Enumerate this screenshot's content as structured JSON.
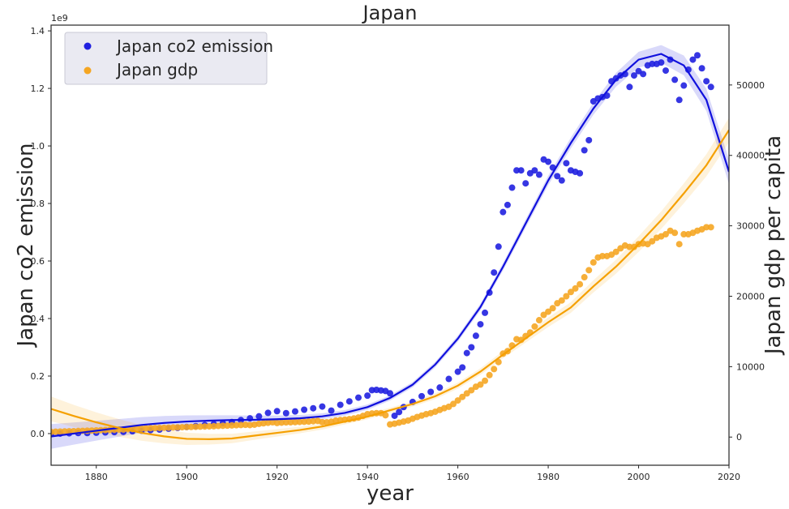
{
  "chart_data": {
    "type": "scatter",
    "title": "Japan",
    "xlabel": "year",
    "ylabel_left": "Japan co2 emission",
    "ylabel_right": "Japan gdp per capita",
    "left_axis_offset_label": "1e9",
    "xlim": [
      1870,
      2020
    ],
    "ylim_left": [
      -0.11,
      1.42
    ],
    "ylim_right": [
      -4000,
      58500
    ],
    "x_ticks": [
      1880,
      1900,
      1920,
      1940,
      1960,
      1980,
      2000,
      2020
    ],
    "y_ticks_left": [
      "0.0",
      "0.2",
      "0.4",
      "0.6",
      "0.8",
      "1.0",
      "1.2",
      "1.4"
    ],
    "y_ticks_left_values": [
      0,
      0.2,
      0.4,
      0.6,
      0.8,
      1.0,
      1.2,
      1.4
    ],
    "y_ticks_right": [
      0,
      10000,
      20000,
      30000,
      40000,
      50000
    ],
    "legend": {
      "position": "top-left",
      "entries": [
        "Japan co2 emission",
        "Japan gdp"
      ]
    },
    "colors": {
      "co2": "#2020e0",
      "co2_line": "#1010dd",
      "gdp": "#f5a623",
      "gdp_line": "#f5a000"
    },
    "series": [
      {
        "name": "Japan co2 emission",
        "axis": "left",
        "unit_scale": "1e9",
        "x": [
          1870,
          1872,
          1874,
          1876,
          1878,
          1880,
          1882,
          1884,
          1886,
          1888,
          1890,
          1892,
          1894,
          1896,
          1898,
          1900,
          1902,
          1904,
          1906,
          1908,
          1910,
          1912,
          1914,
          1916,
          1918,
          1920,
          1922,
          1924,
          1926,
          1928,
          1930,
          1932,
          1934,
          1936,
          1938,
          1940,
          1941,
          1942,
          1943,
          1944,
          1945,
          1946,
          1947,
          1948,
          1950,
          1952,
          1954,
          1956,
          1958,
          1960,
          1961,
          1962,
          1963,
          1964,
          1965,
          1966,
          1967,
          1968,
          1969,
          1970,
          1971,
          1972,
          1973,
          1974,
          1975,
          1976,
          1977,
          1978,
          1979,
          1980,
          1981,
          1982,
          1983,
          1984,
          1985,
          1986,
          1987,
          1988,
          1989,
          1990,
          1991,
          1992,
          1993,
          1994,
          1995,
          1996,
          1997,
          1998,
          1999,
          2000,
          2001,
          2002,
          2003,
          2004,
          2005,
          2006,
          2007,
          2008,
          2009,
          2010,
          2011,
          2012,
          2013,
          2014,
          2015,
          2016
        ],
        "y": [
          0.0,
          0.0,
          0.001,
          0.002,
          0.002,
          0.003,
          0.004,
          0.005,
          0.006,
          0.008,
          0.01,
          0.012,
          0.014,
          0.017,
          0.02,
          0.023,
          0.026,
          0.03,
          0.033,
          0.036,
          0.04,
          0.047,
          0.053,
          0.06,
          0.072,
          0.078,
          0.071,
          0.077,
          0.083,
          0.088,
          0.094,
          0.08,
          0.1,
          0.112,
          0.125,
          0.132,
          0.151,
          0.152,
          0.15,
          0.148,
          0.14,
          0.062,
          0.075,
          0.092,
          0.11,
          0.13,
          0.145,
          0.16,
          0.19,
          0.215,
          0.23,
          0.28,
          0.3,
          0.34,
          0.38,
          0.42,
          0.49,
          0.56,
          0.65,
          0.77,
          0.795,
          0.855,
          0.915,
          0.915,
          0.87,
          0.905,
          0.915,
          0.9,
          0.953,
          0.945,
          0.925,
          0.895,
          0.88,
          0.94,
          0.915,
          0.91,
          0.905,
          0.985,
          1.02,
          1.155,
          1.165,
          1.17,
          1.175,
          1.225,
          1.235,
          1.245,
          1.25,
          1.205,
          1.245,
          1.26,
          1.25,
          1.28,
          1.285,
          1.285,
          1.29,
          1.262,
          1.3,
          1.23,
          1.16,
          1.21,
          1.265,
          1.3,
          1.315,
          1.27,
          1.225,
          1.205
        ]
      },
      {
        "name": "Japan gdp",
        "axis": "right",
        "x": [
          1870,
          1871,
          1872,
          1873,
          1874,
          1875,
          1876,
          1877,
          1878,
          1879,
          1880,
          1881,
          1882,
          1883,
          1884,
          1885,
          1886,
          1887,
          1888,
          1889,
          1890,
          1891,
          1892,
          1893,
          1894,
          1895,
          1896,
          1897,
          1898,
          1899,
          1900,
          1901,
          1902,
          1903,
          1904,
          1905,
          1906,
          1907,
          1908,
          1909,
          1910,
          1911,
          1912,
          1913,
          1914,
          1915,
          1916,
          1917,
          1918,
          1919,
          1920,
          1921,
          1922,
          1923,
          1924,
          1925,
          1926,
          1927,
          1928,
          1929,
          1930,
          1931,
          1932,
          1933,
          1934,
          1935,
          1936,
          1937,
          1938,
          1939,
          1940,
          1941,
          1942,
          1943,
          1944,
          1945,
          1946,
          1947,
          1948,
          1949,
          1950,
          1951,
          1952,
          1953,
          1954,
          1955,
          1956,
          1957,
          1958,
          1959,
          1960,
          1961,
          1962,
          1963,
          1964,
          1965,
          1966,
          1967,
          1968,
          1969,
          1970,
          1971,
          1972,
          1973,
          1974,
          1975,
          1976,
          1977,
          1978,
          1979,
          1980,
          1981,
          1982,
          1983,
          1984,
          1985,
          1986,
          1987,
          1988,
          1989,
          1990,
          1991,
          1992,
          1993,
          1994,
          1995,
          1996,
          1997,
          1998,
          1999,
          2000,
          2001,
          2002,
          2003,
          2004,
          2005,
          2006,
          2007,
          2008,
          2009,
          2010,
          2011,
          2012,
          2013,
          2014,
          2015,
          2016
        ],
        "y": [
          740,
          760,
          780,
          800,
          820,
          840,
          860,
          880,
          900,
          920,
          950,
          980,
          1000,
          1020,
          1040,
          1060,
          1080,
          1110,
          1140,
          1170,
          1200,
          1230,
          1260,
          1280,
          1300,
          1320,
          1340,
          1360,
          1380,
          1400,
          1420,
          1440,
          1460,
          1480,
          1500,
          1520,
          1540,
          1580,
          1600,
          1620,
          1650,
          1680,
          1710,
          1740,
          1700,
          1760,
          1880,
          1950,
          2030,
          2100,
          2000,
          2050,
          2080,
          2100,
          2120,
          2150,
          2170,
          2200,
          2250,
          2300,
          2120,
          2100,
          2180,
          2350,
          2420,
          2480,
          2550,
          2650,
          2780,
          3000,
          3250,
          3350,
          3400,
          3400,
          3100,
          1800,
          1900,
          2050,
          2200,
          2350,
          2600,
          2850,
          3050,
          3250,
          3400,
          3600,
          3850,
          4100,
          4300,
          4700,
          5200,
          5700,
          6200,
          6650,
          7150,
          7450,
          8000,
          8800,
          9650,
          10650,
          11850,
          12200,
          13000,
          13900,
          13800,
          14350,
          14850,
          15700,
          16600,
          17350,
          17800,
          18300,
          19000,
          19400,
          20000,
          20600,
          21100,
          21700,
          22700,
          23700,
          24800,
          25500,
          25700,
          25700,
          25900,
          26300,
          26800,
          27200,
          27000,
          27000,
          27400,
          27500,
          27400,
          27800,
          28300,
          28500,
          28800,
          29300,
          29000,
          27400,
          28800,
          28800,
          29000,
          29300,
          29500,
          29800,
          29800
        ]
      },
      {
        "name": "Japan co2 emission trend",
        "axis": "left",
        "style": "line+band",
        "x": [
          1870,
          1875,
          1880,
          1885,
          1890,
          1895,
          1900,
          1905,
          1910,
          1915,
          1920,
          1925,
          1930,
          1935,
          1940,
          1945,
          1950,
          1955,
          1960,
          1965,
          1970,
          1975,
          1980,
          1985,
          1990,
          1995,
          2000,
          2005,
          2010,
          2015,
          2020
        ],
        "y": [
          -0.01,
          0.0,
          0.01,
          0.02,
          0.03,
          0.037,
          0.042,
          0.045,
          0.047,
          0.048,
          0.05,
          0.053,
          0.06,
          0.072,
          0.092,
          0.124,
          0.17,
          0.24,
          0.33,
          0.44,
          0.58,
          0.73,
          0.88,
          1.01,
          1.13,
          1.23,
          1.3,
          1.32,
          1.28,
          1.16,
          0.91
        ]
      },
      {
        "name": "Japan gdp trend",
        "axis": "right",
        "style": "line+band",
        "x": [
          1870,
          1875,
          1880,
          1885,
          1890,
          1895,
          1900,
          1905,
          1910,
          1915,
          1920,
          1925,
          1930,
          1935,
          1940,
          1945,
          1950,
          1955,
          1960,
          1965,
          1970,
          1975,
          1980,
          1985,
          1990,
          1995,
          2000,
          2005,
          2010,
          2015,
          2020
        ],
        "y": [
          4000,
          3000,
          2100,
          1300,
          600,
          100,
          -250,
          -300,
          -200,
          200,
          600,
          1000,
          1500,
          2200,
          2900,
          3800,
          4700,
          5800,
          7300,
          9300,
          11700,
          14000,
          16300,
          18400,
          21400,
          24200,
          27400,
          30800,
          34600,
          38600,
          43600
        ]
      }
    ]
  }
}
